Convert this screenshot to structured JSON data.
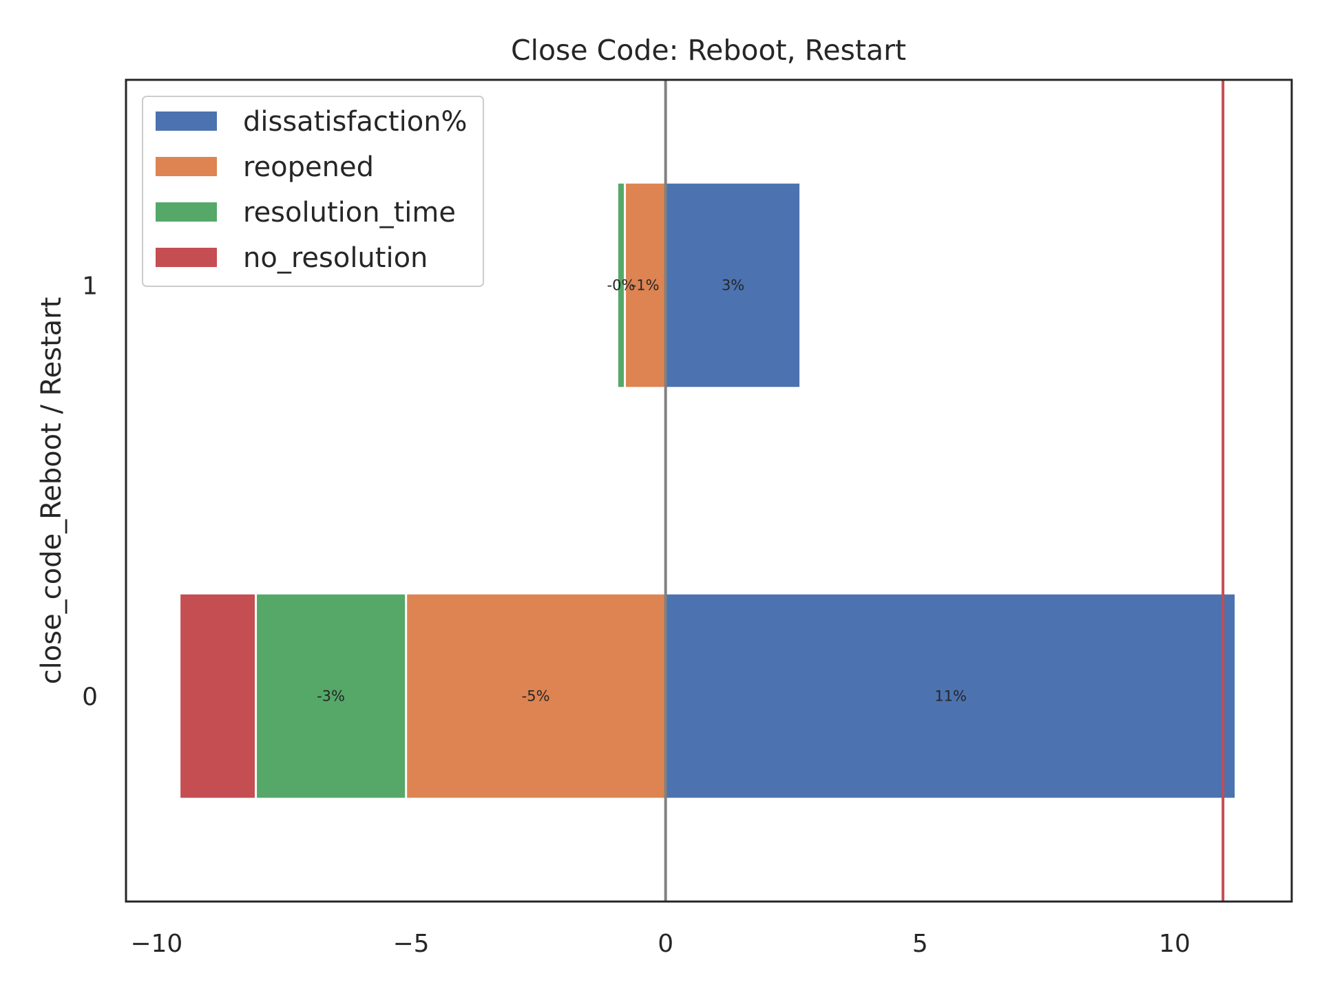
{
  "chart_data": {
    "type": "bar",
    "orientation": "horizontal",
    "stacked": "diverging",
    "title": "Close Code: Reboot, Restart",
    "xlabel": "",
    "ylabel": "close_code_Reboot / Restart",
    "categories": [
      "0",
      "1"
    ],
    "xlim": [
      -10.6,
      12.3
    ],
    "ylim": [
      -0.5,
      1.5
    ],
    "x_ticks": [
      -10,
      -5,
      0,
      5,
      10
    ],
    "x_tick_labels": [
      "−10",
      "−5",
      "0",
      "5",
      "10"
    ],
    "grid": false,
    "legend_position": "top-left",
    "series": [
      {
        "name": "dissatisfaction%",
        "color": "#4c72b0",
        "values": [
          11.2,
          2.65
        ],
        "labels": [
          "11%",
          "3%"
        ]
      },
      {
        "name": "reopened",
        "color": "#dd8452",
        "values": [
          -5.1,
          -0.8
        ],
        "labels": [
          "-5%",
          "-1%"
        ]
      },
      {
        "name": "resolution_time",
        "color": "#55a868",
        "values": [
          -2.95,
          -0.15
        ],
        "labels": [
          "-3%",
          "-0%"
        ]
      },
      {
        "name": "no_resolution",
        "color": "#c44e52",
        "values": [
          -1.5,
          0
        ],
        "labels": [
          "",
          ""
        ]
      }
    ],
    "reference_lines": [
      {
        "x": 0,
        "color": "#808080"
      },
      {
        "x": 10.95,
        "color": "#c44e52"
      }
    ]
  }
}
